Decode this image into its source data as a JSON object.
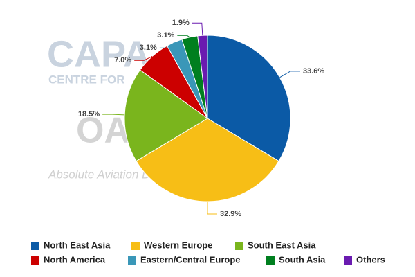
{
  "chart_data": {
    "type": "pie",
    "watermark": [
      "CAPA",
      "CENTRE FOR",
      "OAG",
      "Absolute Aviation Da"
    ],
    "categories": [
      "North East Asia",
      "Western Europe",
      "South East Asia",
      "North America",
      "Eastern/Central Europe",
      "South Asia",
      "Others"
    ],
    "values": [
      33.6,
      32.9,
      18.5,
      7.0,
      3.1,
      3.1,
      1.9
    ],
    "value_labels": [
      "33.6%",
      "32.9%",
      "18.5%",
      "7.0%",
      "3.1%",
      "3.1%",
      "1.9%"
    ],
    "colors": [
      "#0b5aa6",
      "#f7be16",
      "#7ab51d",
      "#cc0000",
      "#3a97b8",
      "#007f1f",
      "#6a1bb0"
    ]
  }
}
